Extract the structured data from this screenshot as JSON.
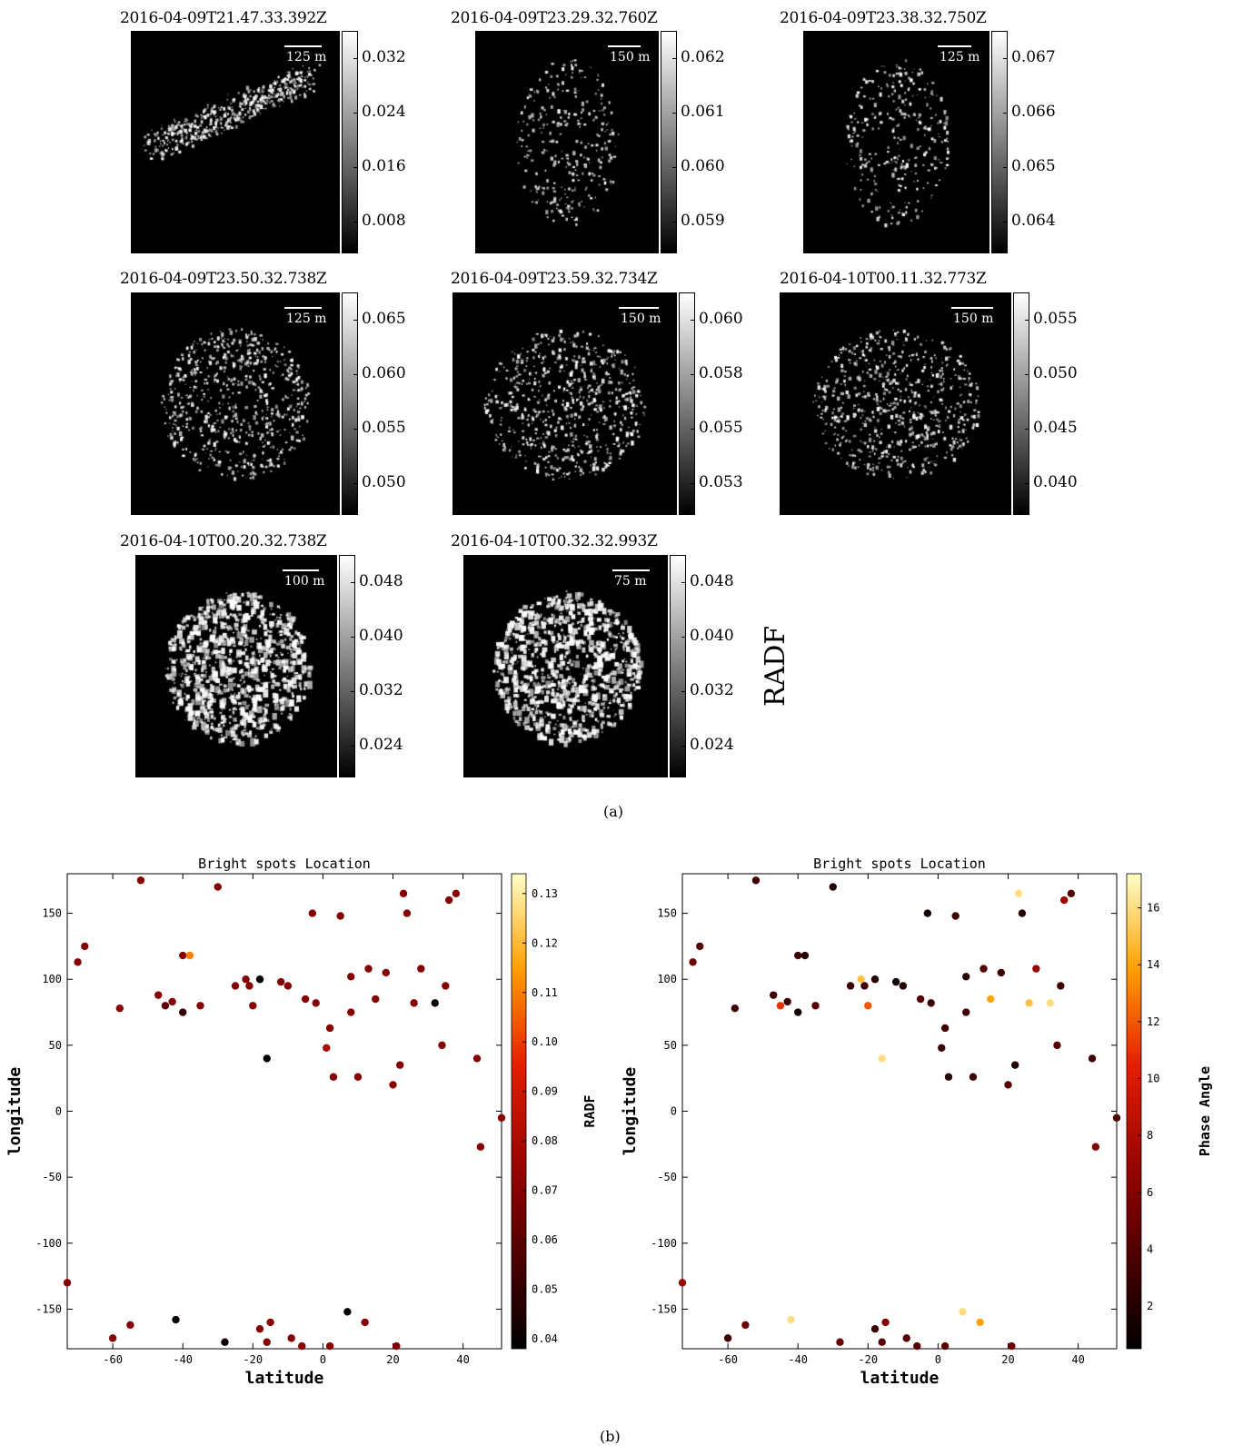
{
  "figure": {
    "caption_a": "(a)",
    "caption_b": "(b)",
    "radf_label": "RADF"
  },
  "panels": [
    {
      "title": "2016-04-09T21.47.33.392Z",
      "scale": "125 m",
      "ticks": [
        "0.032",
        "0.024",
        "0.016",
        "0.008"
      ],
      "seed": 11,
      "spread": "streak"
    },
    {
      "title": "2016-04-09T23.29.32.760Z",
      "scale": "150 m",
      "ticks": [
        "0.062",
        "0.061",
        "0.060",
        "0.059"
      ],
      "seed": 23,
      "spread": "sparse"
    },
    {
      "title": "2016-04-09T23.38.32.750Z",
      "scale": "125 m",
      "ticks": [
        "0.067",
        "0.066",
        "0.065",
        "0.064"
      ],
      "seed": 37,
      "spread": "sparse"
    },
    {
      "title": "2016-04-09T23.50.32.738Z",
      "scale": "125 m",
      "ticks": [
        "0.065",
        "0.060",
        "0.055",
        "0.050"
      ],
      "seed": 41,
      "spread": "medium"
    },
    {
      "title": "2016-04-09T23.59.32.734Z",
      "scale": "150 m",
      "ticks": [
        "0.060",
        "0.058",
        "0.055",
        "0.053"
      ],
      "seed": 53,
      "spread": "medium"
    },
    {
      "title": "2016-04-10T00.11.32.773Z",
      "scale": "150 m",
      "ticks": [
        "0.055",
        "0.050",
        "0.045",
        "0.040"
      ],
      "seed": 67,
      "spread": "medium"
    },
    {
      "title": "2016-04-10T00.20.32.738Z",
      "scale": "100 m",
      "ticks": [
        "0.048",
        "0.040",
        "0.032",
        "0.024"
      ],
      "seed": 79,
      "spread": "dense"
    },
    {
      "title": "2016-04-10T00.32.32.993Z",
      "scale": "75 m",
      "ticks": [
        "0.048",
        "0.040",
        "0.032",
        "0.024"
      ],
      "seed": 97,
      "spread": "dense"
    }
  ],
  "chart_data": [
    {
      "type": "scatter",
      "title": "Bright spots Location",
      "xlabel": "latitude",
      "ylabel": "longitude",
      "colorbar_label": "RADF",
      "xlim": [
        -73,
        51
      ],
      "ylim": [
        -180,
        180
      ],
      "xticks": [
        "-60",
        "-40",
        "-20",
        "0",
        "20",
        "40"
      ],
      "yticks": [
        "150",
        "100",
        "50",
        "0",
        "-50",
        "-100",
        "-150"
      ],
      "cticks": [
        "0.13",
        "0.12",
        "0.11",
        "0.10",
        "0.09",
        "0.08",
        "0.07",
        "0.06",
        "0.05",
        "0.04"
      ],
      "crange": [
        0.038,
        0.134
      ],
      "points": [
        [
          -70,
          113,
          0.07
        ],
        [
          -68,
          125,
          0.07
        ],
        [
          -73,
          -130,
          0.07
        ],
        [
          -58,
          78,
          0.07
        ],
        [
          -55,
          -162,
          0.07
        ],
        [
          -60,
          -172,
          0.07
        ],
        [
          -52,
          175,
          0.07
        ],
        [
          -47,
          88,
          0.07
        ],
        [
          -45,
          80,
          0.06
        ],
        [
          -42,
          -158,
          0.04
        ],
        [
          -40,
          118,
          0.07
        ],
        [
          -38,
          118,
          0.11
        ],
        [
          -40,
          75,
          0.05
        ],
        [
          -35,
          80,
          0.07
        ],
        [
          -30,
          170,
          0.07
        ],
        [
          -28,
          -175,
          0.04
        ],
        [
          -25,
          95,
          0.07
        ],
        [
          -22,
          100,
          0.07
        ],
        [
          -20,
          80,
          0.07
        ],
        [
          -18,
          -165,
          0.07
        ],
        [
          -15,
          -160,
          0.07
        ],
        [
          -16,
          40,
          0.04
        ],
        [
          -12,
          98,
          0.07
        ],
        [
          -10,
          95,
          0.07
        ],
        [
          -5,
          85,
          0.07
        ],
        [
          -3,
          150,
          0.07
        ],
        [
          -2,
          82,
          0.07
        ],
        [
          2,
          63,
          0.07
        ],
        [
          3,
          26,
          0.07
        ],
        [
          5,
          148,
          0.07
        ],
        [
          7,
          -152,
          0.04
        ],
        [
          8,
          102,
          0.07
        ],
        [
          8,
          75,
          0.07
        ],
        [
          10,
          26,
          0.07
        ],
        [
          12,
          -160,
          0.07
        ],
        [
          13,
          108,
          0.07
        ],
        [
          15,
          85,
          0.07
        ],
        [
          18,
          105,
          0.07
        ],
        [
          20,
          20,
          0.07
        ],
        [
          21,
          -178,
          0.07
        ],
        [
          22,
          35,
          0.07
        ],
        [
          23,
          165,
          0.07
        ],
        [
          26,
          82,
          0.07
        ],
        [
          28,
          108,
          0.07
        ],
        [
          32,
          82,
          0.04
        ],
        [
          34,
          50,
          0.07
        ],
        [
          35,
          95,
          0.07
        ],
        [
          36,
          160,
          0.07
        ],
        [
          38,
          165,
          0.07
        ],
        [
          44,
          40,
          0.07
        ],
        [
          45,
          -27,
          0.07
        ],
        [
          51,
          -5,
          0.07
        ],
        [
          -16,
          -175,
          0.07
        ],
        [
          -6,
          -178,
          0.07
        ],
        [
          -9,
          -172,
          0.07
        ],
        [
          2,
          -178,
          0.07
        ],
        [
          -21,
          95,
          0.07
        ],
        [
          -18,
          100,
          0.04
        ],
        [
          1,
          48,
          0.08
        ],
        [
          24,
          150,
          0.07
        ],
        [
          -43,
          83,
          0.07
        ]
      ]
    },
    {
      "type": "scatter",
      "title": "Bright spots Location",
      "xlabel": "latitude",
      "ylabel": "longitude",
      "colorbar_label": "Phase Angle",
      "xlim": [
        -73,
        51
      ],
      "ylim": [
        -180,
        180
      ],
      "xticks": [
        "-60",
        "-40",
        "-20",
        "0",
        "20",
        "40"
      ],
      "yticks": [
        "150",
        "100",
        "50",
        "0",
        "-50",
        "-100",
        "-150"
      ],
      "cticks": [
        "16",
        "14",
        "12",
        "10",
        "8",
        "6",
        "4",
        "2"
      ],
      "crange": [
        0.5,
        17.2
      ],
      "points": [
        [
          -70,
          113,
          5
        ],
        [
          -68,
          125,
          4
        ],
        [
          -73,
          -130,
          7
        ],
        [
          -58,
          78,
          3
        ],
        [
          -55,
          -162,
          5
        ],
        [
          -60,
          -172,
          3
        ],
        [
          -52,
          175,
          3
        ],
        [
          -47,
          88,
          3
        ],
        [
          -45,
          80,
          11
        ],
        [
          -42,
          -158,
          16
        ],
        [
          -40,
          118,
          3
        ],
        [
          -38,
          118,
          2
        ],
        [
          -40,
          75,
          1
        ],
        [
          -35,
          80,
          4
        ],
        [
          -30,
          170,
          2
        ],
        [
          -28,
          -175,
          5
        ],
        [
          -25,
          95,
          3
        ],
        [
          -22,
          100,
          15
        ],
        [
          -20,
          80,
          12
        ],
        [
          -18,
          -165,
          3
        ],
        [
          -15,
          -160,
          6
        ],
        [
          -16,
          40,
          16
        ],
        [
          -12,
          98,
          1
        ],
        [
          -10,
          95,
          2
        ],
        [
          -5,
          85,
          4
        ],
        [
          -3,
          150,
          1
        ],
        [
          -2,
          82,
          3
        ],
        [
          2,
          63,
          3
        ],
        [
          3,
          26,
          2
        ],
        [
          5,
          148,
          3
        ],
        [
          7,
          -152,
          16
        ],
        [
          8,
          102,
          2
        ],
        [
          8,
          75,
          3
        ],
        [
          10,
          26,
          3
        ],
        [
          12,
          -160,
          14
        ],
        [
          13,
          108,
          4
        ],
        [
          15,
          85,
          14
        ],
        [
          18,
          105,
          3
        ],
        [
          20,
          20,
          4
        ],
        [
          21,
          -178,
          5
        ],
        [
          22,
          35,
          2
        ],
        [
          23,
          165,
          16
        ],
        [
          26,
          82,
          15
        ],
        [
          28,
          108,
          7
        ],
        [
          32,
          82,
          16
        ],
        [
          34,
          50,
          4
        ],
        [
          35,
          95,
          3
        ],
        [
          36,
          160,
          7
        ],
        [
          38,
          165,
          4
        ],
        [
          44,
          40,
          3
        ],
        [
          45,
          -27,
          6
        ],
        [
          51,
          -5,
          4
        ],
        [
          -16,
          -175,
          4
        ],
        [
          -6,
          -178,
          4
        ],
        [
          -9,
          -172,
          4
        ],
        [
          2,
          -178,
          4
        ],
        [
          -21,
          95,
          3
        ],
        [
          -18,
          100,
          2
        ],
        [
          1,
          48,
          3
        ],
        [
          24,
          150,
          2
        ],
        [
          -43,
          83,
          3
        ]
      ]
    }
  ]
}
